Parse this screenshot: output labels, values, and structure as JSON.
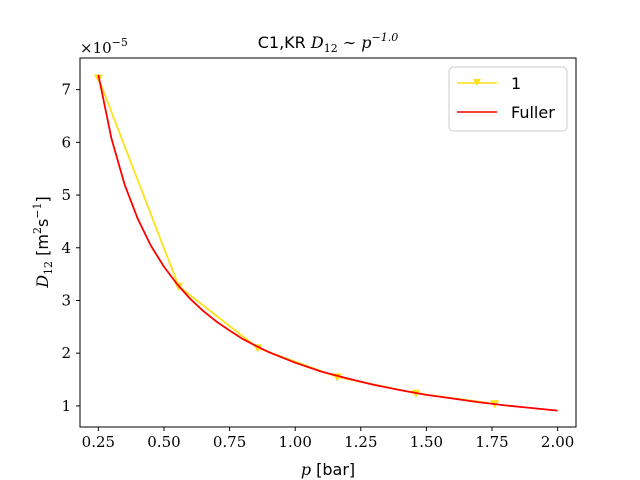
{
  "chart_data": {
    "type": "line",
    "title_prefix": "C1,KR ",
    "title_math_var": "D",
    "title_math_sub": "12",
    "title_math_rel": " ∼ ",
    "title_math_base": "p",
    "title_math_exp": "−1.0",
    "xlabel_var": "p",
    "xlabel_unit": " [bar]",
    "ylabel_var": "D",
    "ylabel_sub": "12",
    "ylabel_unit_open": " [m",
    "ylabel_unit_exp1": "2",
    "ylabel_unit_mid": "s",
    "ylabel_unit_exp2": "−1",
    "ylabel_unit_close": "]",
    "y_offset_base": "×10",
    "y_offset_exp": "−5",
    "xlim": [
      0.18,
      2.07
    ],
    "ylim": [
      0.6,
      7.6
    ],
    "x_ticks": [
      0.25,
      0.5,
      0.75,
      1.0,
      1.25,
      1.5,
      1.75,
      2.0
    ],
    "x_tick_labels": [
      "0.25",
      "0.50",
      "0.75",
      "1.00",
      "1.25",
      "1.50",
      "1.75",
      "2.00"
    ],
    "y_ticks": [
      1,
      2,
      3,
      4,
      5,
      6,
      7
    ],
    "y_tick_labels": [
      "1",
      "2",
      "3",
      "4",
      "5",
      "6",
      "7"
    ],
    "legend_position": "top-right",
    "grid": false,
    "series": [
      {
        "name": "1",
        "color": "#ffe119",
        "style": "line-marker",
        "marker": "triangle-down",
        "x": [
          0.25,
          0.556,
          0.857,
          1.16,
          1.46,
          1.76
        ],
        "y": [
          7.22,
          3.27,
          2.1,
          1.55,
          1.24,
          1.04
        ]
      },
      {
        "name": "Fuller",
        "color": "#ff0000",
        "style": "line",
        "x": [
          0.25,
          0.3,
          0.35,
          0.4,
          0.45,
          0.5,
          0.55,
          0.6,
          0.65,
          0.7,
          0.75,
          0.8,
          0.85,
          0.9,
          0.95,
          1.0,
          1.1,
          1.2,
          1.3,
          1.4,
          1.5,
          1.6,
          1.7,
          1.8,
          1.9,
          2.0
        ],
        "y": [
          7.28,
          6.07,
          5.2,
          4.55,
          4.04,
          3.64,
          3.31,
          3.03,
          2.8,
          2.6,
          2.43,
          2.27,
          2.14,
          2.02,
          1.92,
          1.82,
          1.65,
          1.52,
          1.4,
          1.3,
          1.21,
          1.14,
          1.07,
          1.01,
          0.96,
          0.91
        ]
      }
    ]
  }
}
